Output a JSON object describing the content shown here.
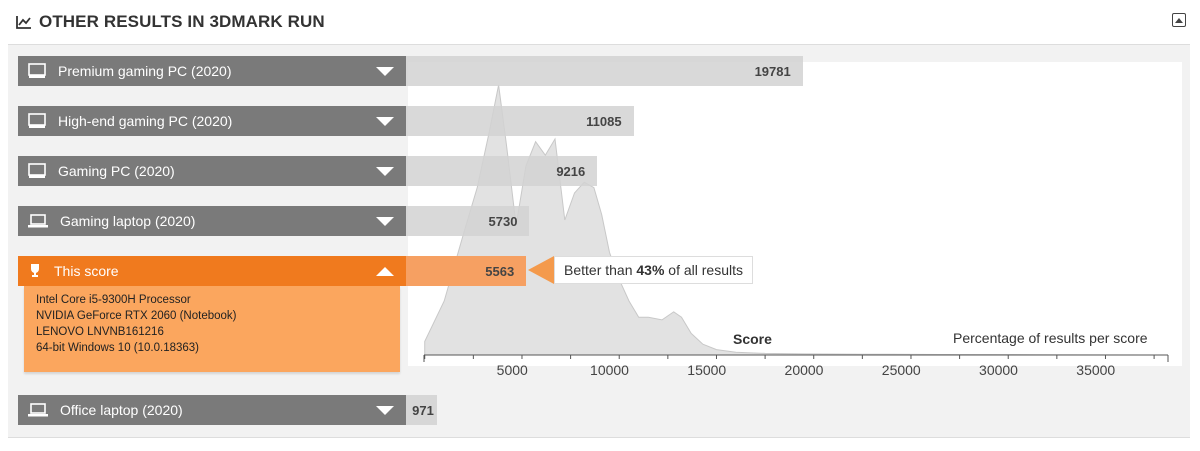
{
  "header": {
    "title": "OTHER RESULTS IN 3DMARK RUN"
  },
  "rows": [
    {
      "label": "Premium gaming PC (2020)",
      "score": 19781,
      "icon": "desktop-icon"
    },
    {
      "label": "High-end gaming PC (2020)",
      "score": 11085,
      "icon": "desktop-icon"
    },
    {
      "label": "Gaming PC (2020)",
      "score": 9216,
      "icon": "desktop-icon"
    },
    {
      "label": "Gaming laptop (2020)",
      "score": 5730,
      "icon": "laptop-icon"
    },
    {
      "label": "This score",
      "score": 5563,
      "icon": "trophy-icon",
      "active": true
    },
    {
      "label": "Office laptop (2020)",
      "score": 971,
      "icon": "laptop-icon"
    }
  ],
  "this_score_details": [
    "Intel Core i5-9300H Processor",
    "NVIDIA GeForce RTX 2060 (Notebook)",
    "LENOVO LNVNB161216",
    "64-bit Windows 10 (10.0.18363)"
  ],
  "callout": {
    "prefix": "Better than ",
    "percent": "43%",
    "suffix": " of all results"
  },
  "chart_data": {
    "type": "area",
    "xlabel": "Score",
    "ylabel": "Percentage of results per score",
    "xticks": [
      5000,
      10000,
      15000,
      20000,
      25000,
      30000,
      35000
    ],
    "xlim": [
      0,
      38000
    ],
    "distribution": {
      "x": [
        500,
        1500,
        2500,
        3200,
        3800,
        4300,
        4700,
        5200,
        5700,
        6200,
        6700,
        7200,
        7700,
        8200,
        8700,
        9200,
        9600,
        10000,
        10500,
        11000,
        11500,
        12000,
        12700,
        13300,
        13700,
        14200,
        14800,
        15500,
        16500,
        18000,
        20000,
        23000,
        27000,
        32000,
        38000
      ],
      "y": [
        0.05,
        0.2,
        0.45,
        0.62,
        0.82,
        1.0,
        0.78,
        0.48,
        0.7,
        0.79,
        0.74,
        0.8,
        0.5,
        0.6,
        0.64,
        0.62,
        0.52,
        0.38,
        0.28,
        0.2,
        0.14,
        0.14,
        0.13,
        0.16,
        0.14,
        0.08,
        0.04,
        0.02,
        0.01,
        0.006,
        0.004,
        0.003,
        0.002,
        0.001,
        0.0
      ]
    },
    "colors": {
      "active": "#f07a1e",
      "bar": "#d2d2d2",
      "row": "#7a7a7a"
    }
  }
}
